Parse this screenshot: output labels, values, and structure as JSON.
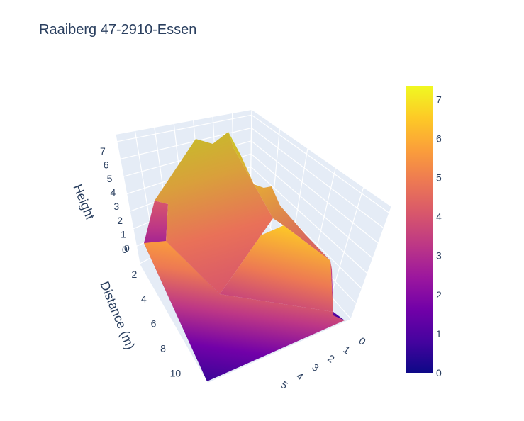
{
  "chart_data": {
    "type": "surface",
    "title": "Raaiberg 47-2910-Essen",
    "colorscale": "Plasma",
    "colorscale_stops": [
      "#0d0887",
      "#46039f",
      "#7201a8",
      "#9c179e",
      "#bd3786",
      "#d8576b",
      "#ed7953",
      "#fb9f3a",
      "#fdca26",
      "#f0f921"
    ],
    "axes": {
      "height": {
        "label": "Height",
        "ticks": [
          "0",
          "1",
          "2",
          "3",
          "4",
          "5",
          "6",
          "7"
        ],
        "range": [
          0,
          7.4
        ]
      },
      "distance": {
        "label": "Distance (m)",
        "ticks": [
          "0",
          "2",
          "4",
          "6",
          "8",
          "10"
        ],
        "range": [
          0,
          10.5
        ]
      },
      "width": {
        "label": "",
        "ticks": [
          "0",
          "1",
          "2",
          "3",
          "4",
          "5"
        ],
        "range": [
          0,
          5
        ]
      }
    },
    "colorbar": {
      "ticks": [
        "0",
        "1",
        "2",
        "3",
        "4",
        "5",
        "6",
        "7"
      ],
      "range": [
        0,
        7.35
      ]
    },
    "surface_profile": {
      "description_free": true,
      "ridge_height": 7.3,
      "eave_height": 4.6,
      "ground": 0
    }
  }
}
